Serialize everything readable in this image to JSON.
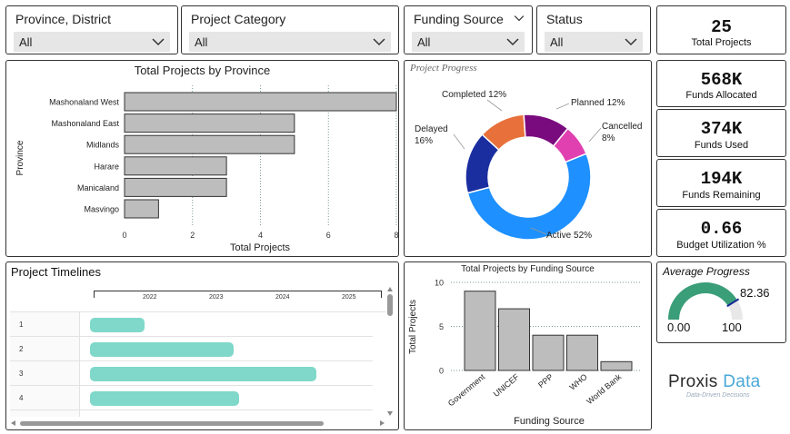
{
  "slicers": [
    {
      "title": "Province, District",
      "value": "All"
    },
    {
      "title": "Project Category",
      "value": "All"
    },
    {
      "title": "Funding Source",
      "value": "All"
    },
    {
      "title": "Status",
      "value": "All"
    }
  ],
  "kpis": {
    "total_projects": {
      "value": "25",
      "label": "Total Projects"
    },
    "funds_allocated": {
      "value": "568K",
      "label": "Funds Allocated"
    },
    "funds_used": {
      "value": "374K",
      "label": "Funds Used"
    },
    "funds_remaining": {
      "value": "194K",
      "label": "Funds Remaining"
    },
    "budget_utilization": {
      "value": "0.66",
      "label": "Budget Utilization %"
    }
  },
  "average_progress": {
    "title": "Average Progress",
    "value": "82.36",
    "min": "0.00",
    "max": "100",
    "fraction": 0.8236,
    "color": "#3a9e78"
  },
  "timelines": {
    "title": "Project Timelines",
    "years": [
      "2022",
      "2023",
      "2024",
      "2025"
    ],
    "rows": [
      {
        "label": "1",
        "start": 0.0,
        "end": 0.8
      },
      {
        "label": "2",
        "start": 0.0,
        "end": 2.1
      },
      {
        "label": "3",
        "start": 0.0,
        "end": 3.4
      },
      {
        "label": "4",
        "start": 0.0,
        "end": 2.2
      }
    ]
  },
  "logo": {
    "brand1": "Proxis",
    "brand2": "Data",
    "tagline": "Data-Driven Decisions"
  },
  "chart_data": [
    {
      "type": "bar",
      "orientation": "horizontal",
      "title": "Total Projects by Province",
      "xlabel": "Total Projects",
      "ylabel": "Province",
      "categories": [
        "Mashonaland West",
        "Mashonaland East",
        "Midlands",
        "Harare",
        "Manicaland",
        "Masvingo"
      ],
      "values": [
        8,
        5,
        5,
        3,
        3,
        1
      ],
      "ticks": [
        "0",
        "2",
        "4",
        "6",
        "8"
      ],
      "xlim": [
        0,
        8
      ],
      "color": "#bdbdbd"
    },
    {
      "type": "pie",
      "title": "Project Progress",
      "categories": [
        "Active",
        "Delayed",
        "Completed",
        "Planned",
        "Cancelled"
      ],
      "values": [
        52,
        16,
        12,
        12,
        8
      ],
      "labels": [
        "Active 52%",
        "Delayed 16%",
        "Completed 12%",
        "Planned 12%",
        "Cancelled 8%"
      ],
      "colors": [
        "#1e90ff",
        "#1a2ea0",
        "#e8703a",
        "#7a0b7e",
        "#e040b0"
      ]
    },
    {
      "type": "bar",
      "title": "Total Projects by Funding Source",
      "xlabel": "Funding Source",
      "ylabel": "Total Projects",
      "categories": [
        "Government",
        "UNICEF",
        "PPP",
        "WHO",
        "World Bank"
      ],
      "values": [
        9,
        7,
        4,
        4,
        1
      ],
      "ticks": [
        "0",
        "5",
        "10"
      ],
      "ylim": [
        0,
        10
      ],
      "color": "#bdbdbd"
    }
  ]
}
